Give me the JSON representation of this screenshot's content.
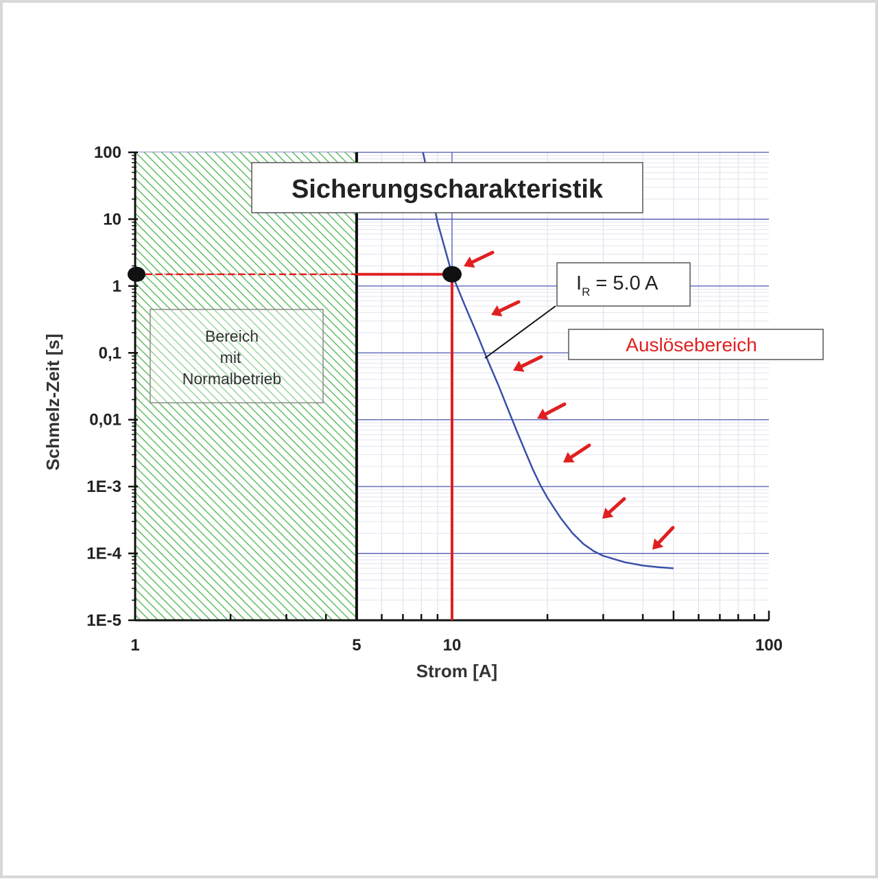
{
  "chart_data": {
    "type": "line",
    "title": "Sicherungscharakteristik",
    "xlabel": "Strom [A]",
    "ylabel": "Schmelz-Zeit [s]",
    "x_scale": "log",
    "y_scale": "log",
    "xlim": [
      1,
      100
    ],
    "ylim": [
      1e-05,
      100
    ],
    "x_ticks": [
      {
        "value": 1,
        "label": "1"
      },
      {
        "value": 5,
        "label": "5"
      },
      {
        "value": 10,
        "label": "10"
      },
      {
        "value": 100,
        "label": "100"
      }
    ],
    "y_ticks": [
      {
        "value": 100,
        "label": "100"
      },
      {
        "value": 10,
        "label": "10"
      },
      {
        "value": 1,
        "label": "1"
      },
      {
        "value": 0.1,
        "label": "0,1"
      },
      {
        "value": 0.01,
        "label": "0,01"
      },
      {
        "value": 0.001,
        "label": "1E-3"
      },
      {
        "value": 0.0001,
        "label": "1E-4"
      },
      {
        "value": 1e-05,
        "label": "1E-5"
      }
    ],
    "series": [
      {
        "color": "#3a4fa8",
        "x": [
          8.1,
          9.0,
          10.0,
          11.0,
          12.0,
          13.0,
          14.0,
          15.0,
          16.0,
          17.0,
          18.0,
          19.0,
          20.0,
          22.0,
          24.0,
          26.0,
          28.0,
          30.0,
          35.0,
          40.0,
          45.0,
          50.0
        ],
        "y": [
          100,
          9.0,
          1.5,
          0.5,
          0.19,
          0.075,
          0.033,
          0.0145,
          0.0068,
          0.0034,
          0.0018,
          0.00105,
          0.00068,
          0.00034,
          0.0002,
          0.000138,
          0.000108,
          9.2e-05,
          7.4e-05,
          6.6e-05,
          6.2e-05,
          6e-05
        ]
      }
    ],
    "rated_current_line": {
      "x": 5,
      "color": "#111111"
    },
    "operating_point": {
      "x": 10,
      "y": 1.5,
      "color": "#e02020"
    },
    "normal_region": {
      "x": [
        1,
        5
      ],
      "label_lines": [
        "Bereich",
        "mit",
        "Normalbetrieb"
      ],
      "fill": "#5cb85c"
    },
    "annotations": {
      "rated": {
        "I": "I",
        "sub": "R",
        "rest": " = 5.0 A"
      },
      "trip_region": {
        "label": "Auslösebereich",
        "color": "#e02020"
      }
    },
    "arrow_color": "#e02020",
    "grid_color": "#4a55b0"
  }
}
